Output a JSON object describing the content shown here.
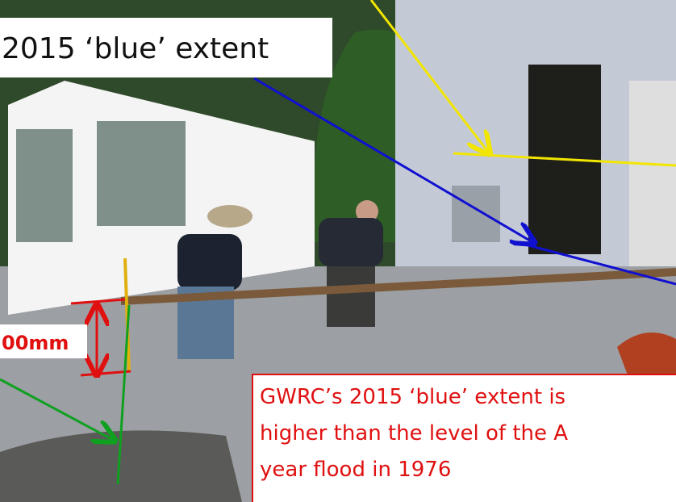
{
  "callout": {
    "text": "2015 ‘blue’ extent"
  },
  "measurement": {
    "text": "00mm"
  },
  "note": {
    "lines": [
      "GWRC’s 2015 ‘blue’ extent is",
      "higher than the level of the A",
      "year flood in 1976"
    ]
  }
}
